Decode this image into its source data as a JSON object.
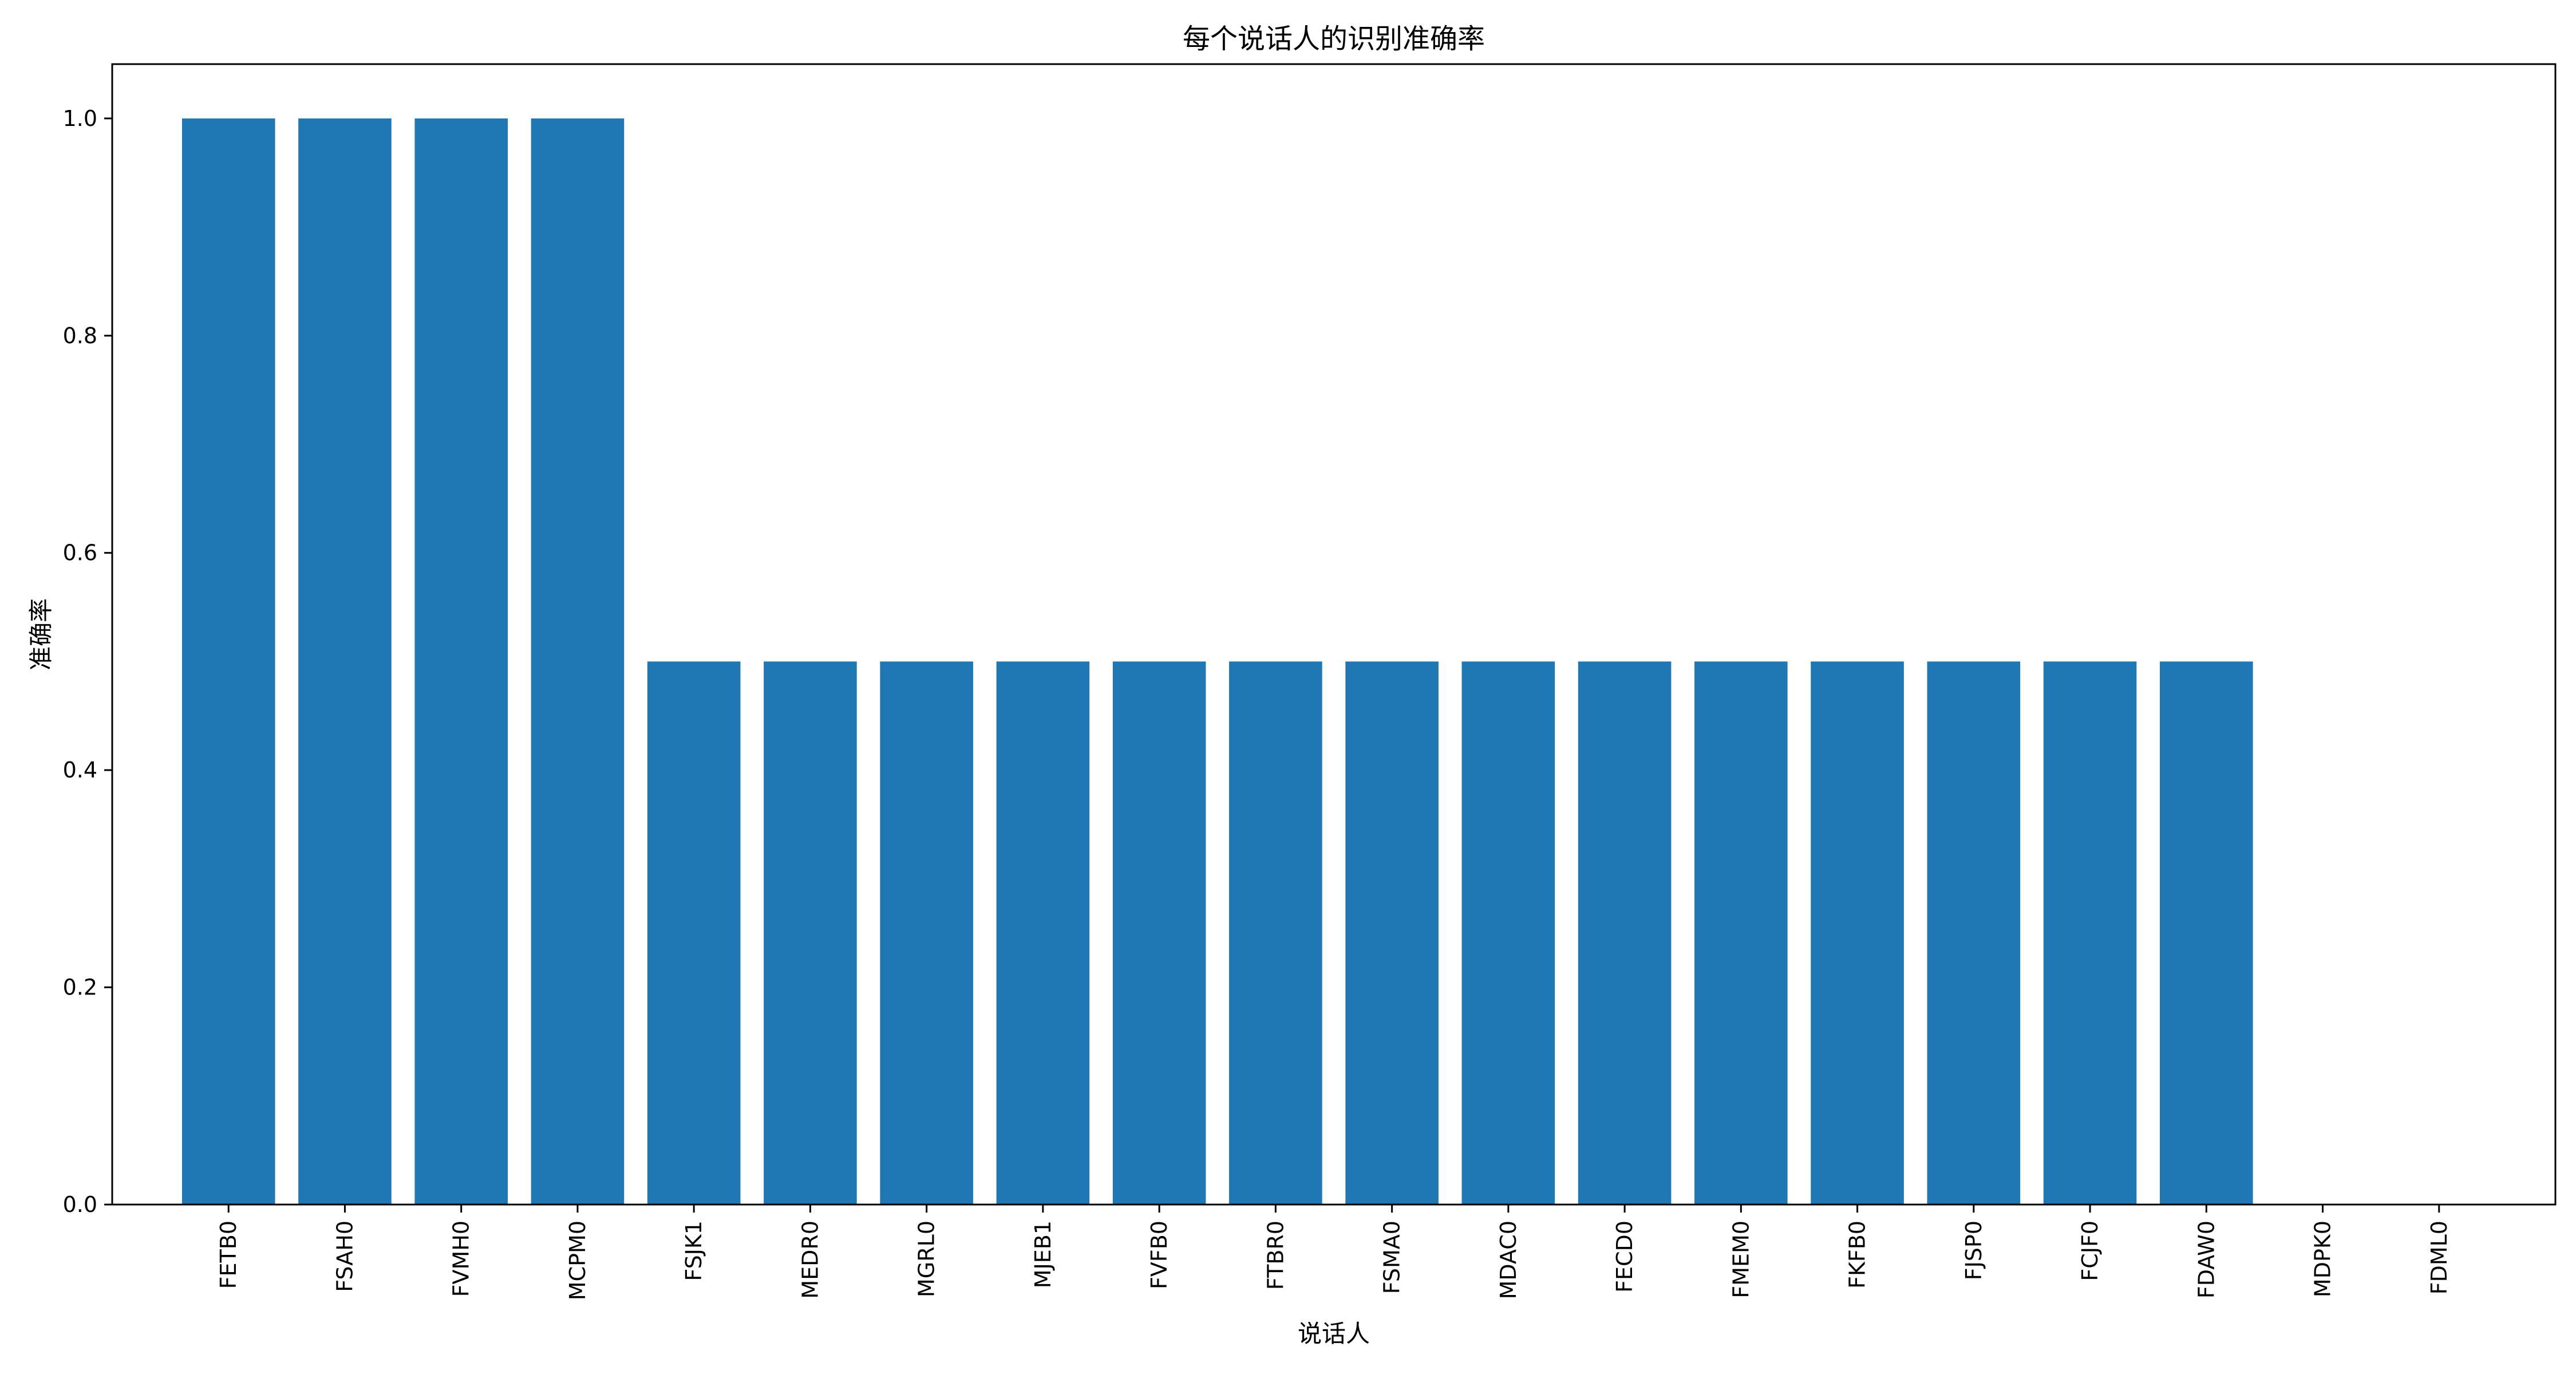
{
  "chart_data": {
    "type": "bar",
    "title": "每个说话人的识别准确率",
    "xlabel": "说话人",
    "ylabel": "准确率",
    "categories": [
      "FETB0",
      "FSAH0",
      "FVMH0",
      "MCPM0",
      "FSJK1",
      "MEDR0",
      "MGRL0",
      "MJEB1",
      "FVFB0",
      "FTBR0",
      "FSMA0",
      "MDAC0",
      "FECD0",
      "FMEM0",
      "FKFB0",
      "FJSP0",
      "FCJF0",
      "FDAW0",
      "MDPK0",
      "FDML0"
    ],
    "values": [
      1.0,
      1.0,
      1.0,
      1.0,
      0.5,
      0.5,
      0.5,
      0.5,
      0.5,
      0.5,
      0.5,
      0.5,
      0.5,
      0.5,
      0.5,
      0.5,
      0.5,
      0.5,
      0.0,
      0.0
    ],
    "ylim": [
      0,
      1.05
    ],
    "yticks": [
      "0.0",
      "0.2",
      "0.4",
      "0.6",
      "0.8",
      "1.0"
    ],
    "bar_color": "#1f77b4",
    "grid": false,
    "legend": "none"
  }
}
